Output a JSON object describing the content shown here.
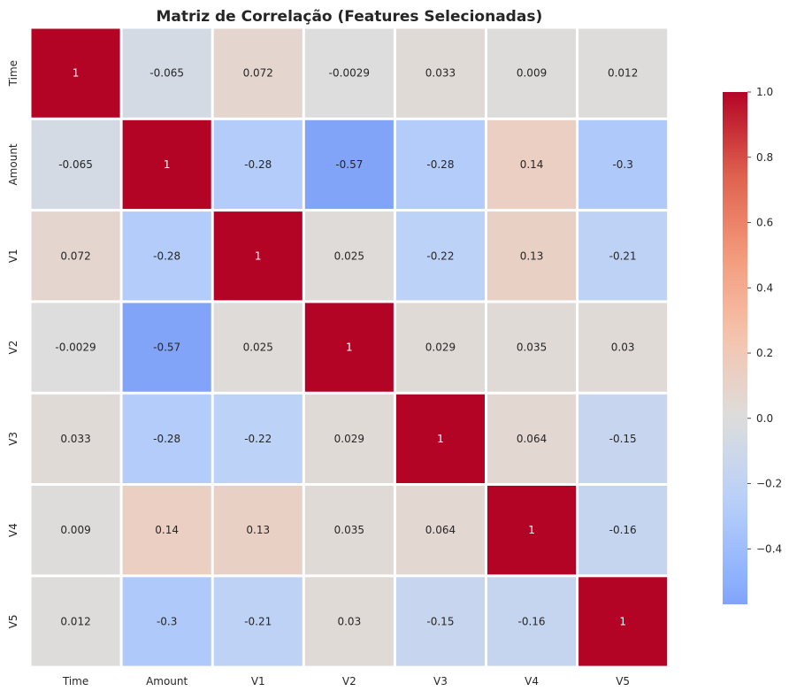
{
  "chart_data": {
    "type": "heatmap",
    "title": "Matriz de Correlação (Features Selecionadas)",
    "xlabel": "",
    "ylabel": "",
    "x_categories": [
      "Time",
      "Amount",
      "V1",
      "V2",
      "V3",
      "V4",
      "V5"
    ],
    "y_categories": [
      "Time",
      "Amount",
      "V1",
      "V2",
      "V3",
      "V4",
      "V5"
    ],
    "values": [
      [
        1,
        -0.065,
        0.072,
        -0.0029,
        0.033,
        0.009,
        0.012
      ],
      [
        -0.065,
        1,
        -0.28,
        -0.57,
        -0.28,
        0.14,
        -0.3
      ],
      [
        0.072,
        -0.28,
        1,
        0.025,
        -0.22,
        0.13,
        -0.21
      ],
      [
        -0.0029,
        -0.57,
        0.025,
        1,
        0.029,
        0.035,
        0.03
      ],
      [
        0.033,
        -0.28,
        -0.22,
        0.029,
        1,
        0.064,
        -0.15
      ],
      [
        0.009,
        0.14,
        0.13,
        0.035,
        0.064,
        1,
        -0.16
      ],
      [
        0.012,
        -0.3,
        -0.21,
        0.03,
        -0.15,
        -0.16,
        1
      ]
    ],
    "colormap": "coolwarm",
    "center": 0,
    "vmin": -0.57,
    "vmax": 1.0,
    "annotations": true,
    "colorbar": {
      "ticks": [
        -0.4,
        -0.2,
        0.0,
        0.2,
        0.4,
        0.6,
        0.8,
        1.0
      ],
      "tick_labels": [
        "−0.4",
        "−0.2",
        "0.0",
        "0.2",
        "0.4",
        "0.6",
        "0.8",
        "1.0"
      ]
    },
    "grid": false,
    "legend": "colorbar-right"
  }
}
